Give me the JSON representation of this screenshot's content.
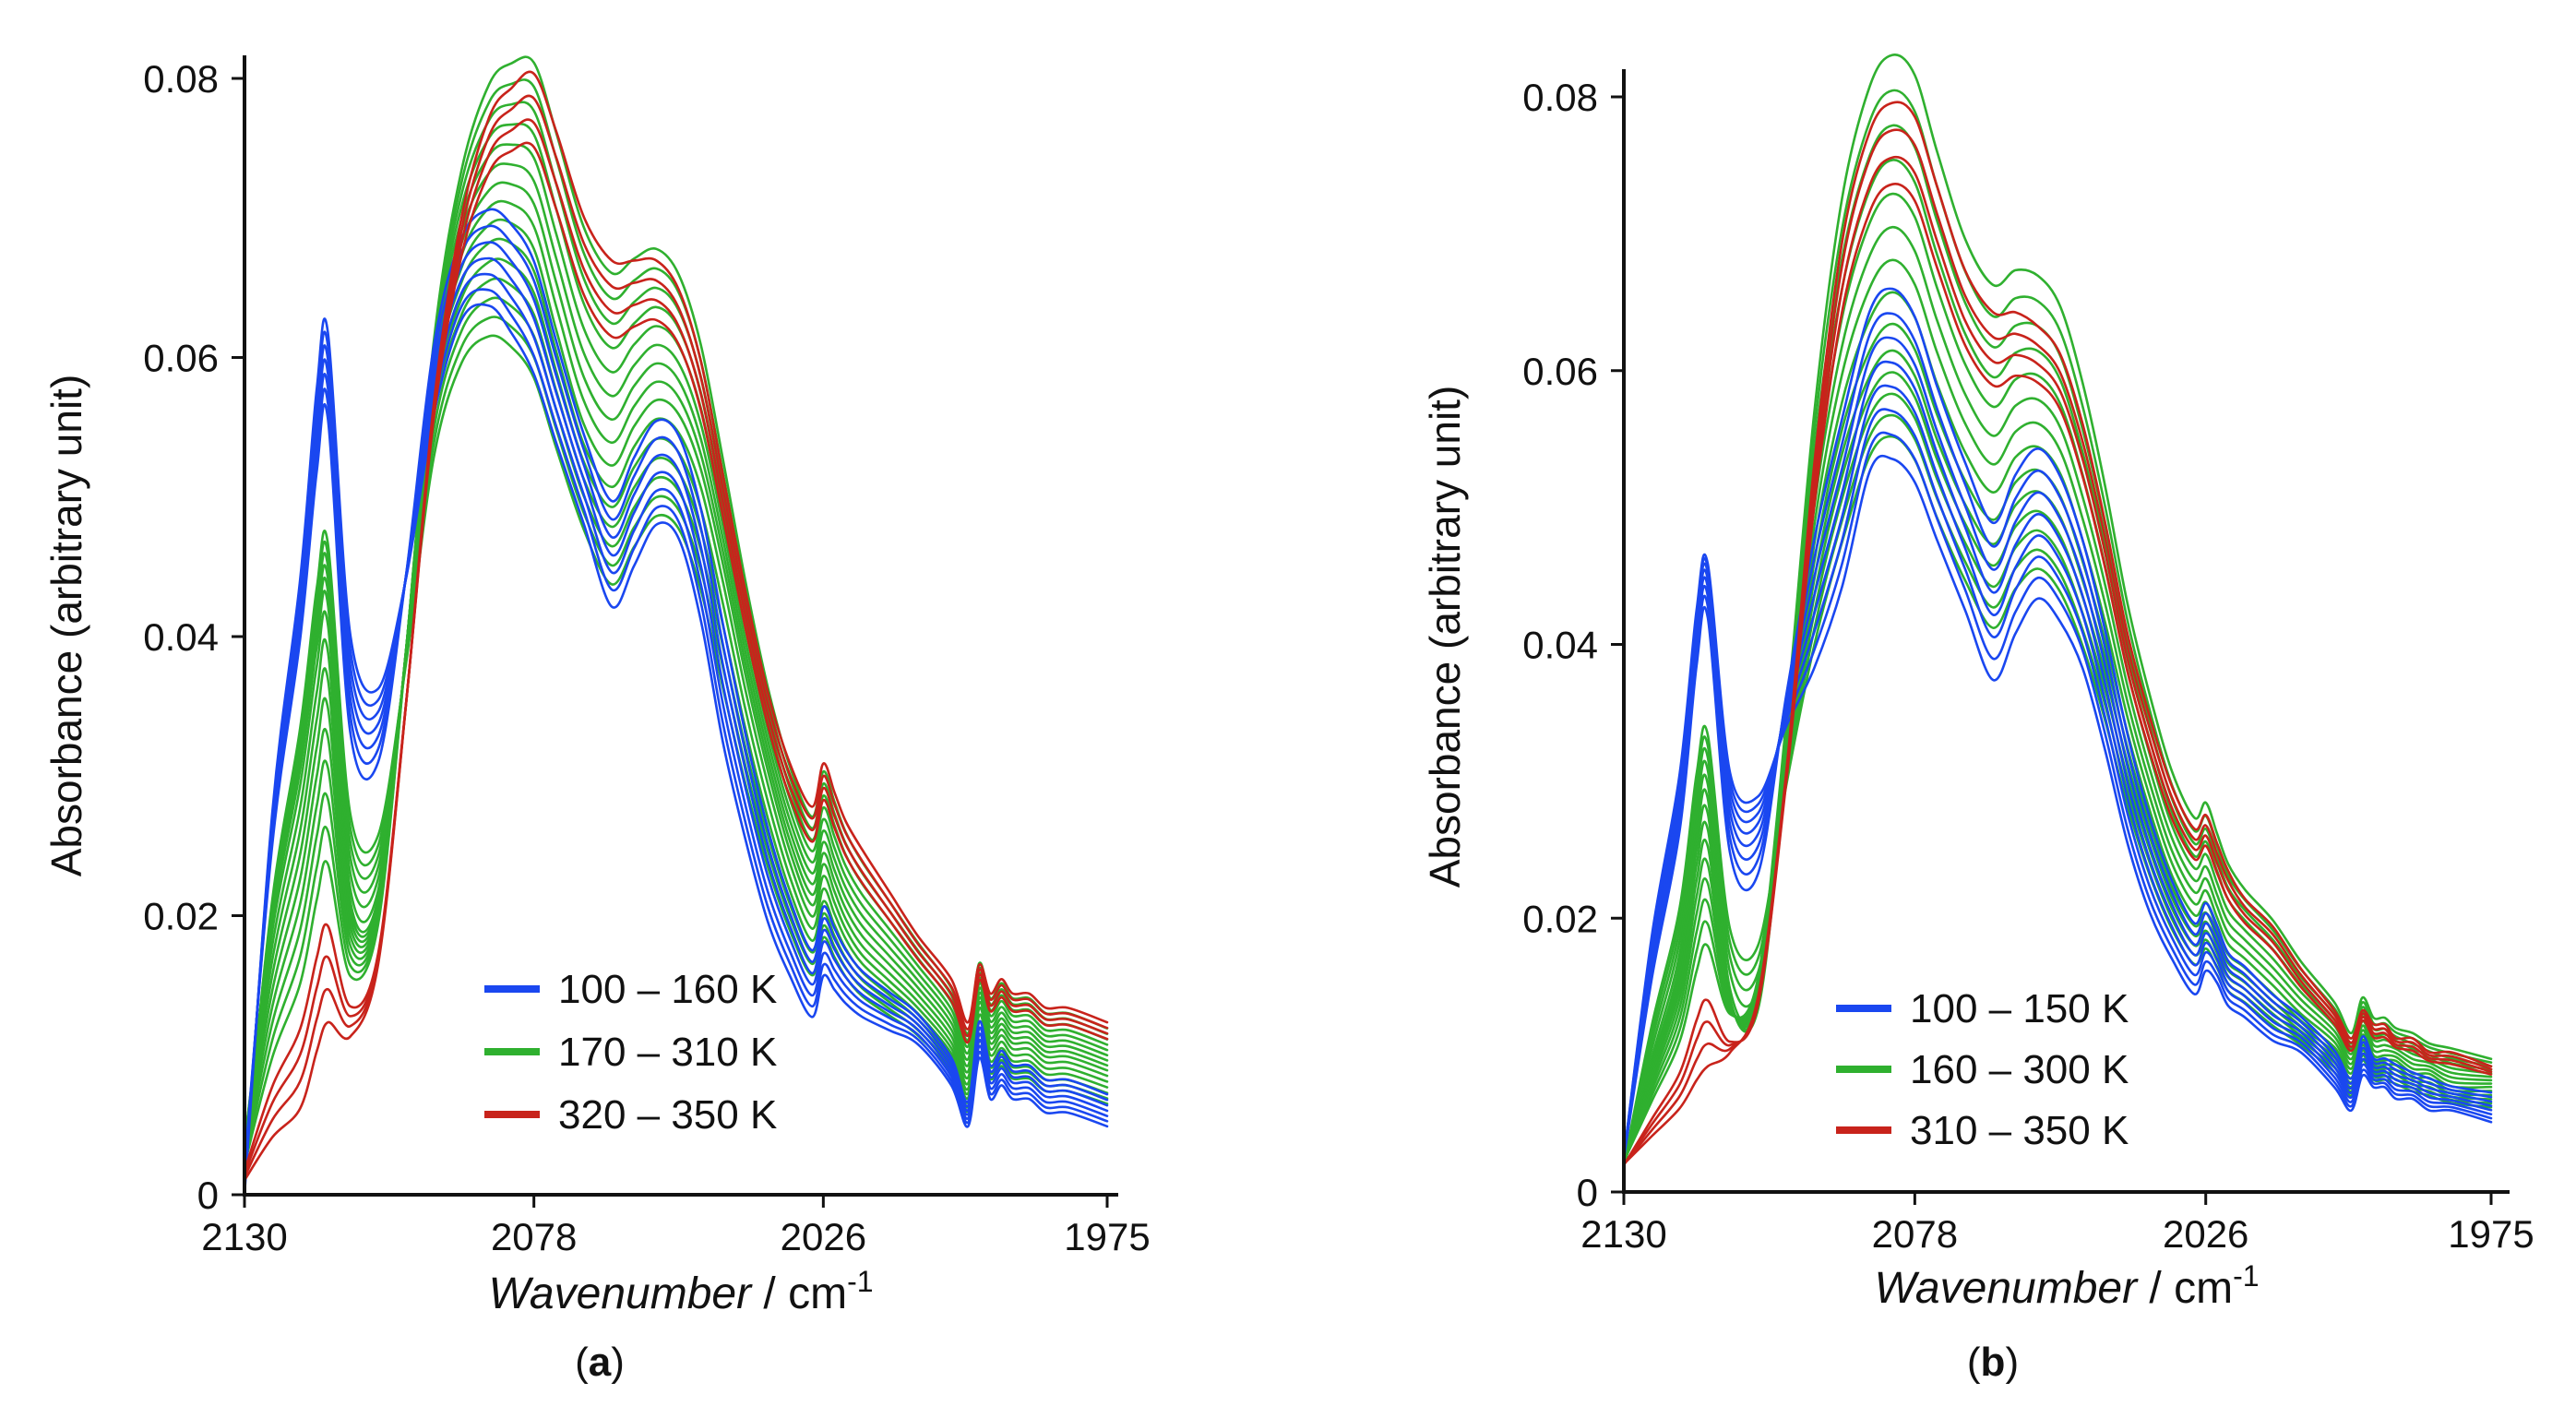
{
  "colors": {
    "blue": "#1a47f0",
    "green": "#2fb02f",
    "red": "#c8231b",
    "axis": "#111111"
  },
  "chart_data": [
    {
      "type": "line",
      "panel_label": "a",
      "xlabel_italic": "Wavenumber",
      "xlabel_unit": " / cm",
      "xlabel_sup": "-1",
      "ylabel": "Absorbance (arbitrary unit)",
      "xlim": [
        2130,
        1975
      ],
      "ylim": [
        0,
        0.08
      ],
      "x_ticks": [
        "2130",
        "2078",
        "2026",
        "1975"
      ],
      "y_ticks": [
        "0",
        "0.02",
        "0.04",
        "0.06",
        "0.08"
      ],
      "legend": [
        {
          "label": "100 – 160 K",
          "color": "blue"
        },
        {
          "label": "170 – 310 K",
          "color": "green"
        },
        {
          "label": "320 – 350 K",
          "color": "red"
        }
      ],
      "groups": [
        {
          "color": "blue",
          "count": 7
        },
        {
          "color": "green",
          "count": 15
        },
        {
          "color": "red",
          "count": 4
        }
      ],
      "x": [
        2130,
        2125,
        2120,
        2117,
        2115,
        2111,
        2106,
        2101,
        2096,
        2091,
        2086,
        2082,
        2078,
        2074,
        2069,
        2064,
        2060,
        2056,
        2052,
        2048,
        2044,
        2040,
        2036,
        2032,
        2028,
        2026,
        2024,
        2022,
        2019,
        2014,
        2009,
        2003,
        2000,
        1998,
        1996,
        1994,
        1992,
        1989,
        1986,
        1982,
        1975
      ],
      "profiles": {
        "cold": [
          0.0,
          0.028,
          0.045,
          0.059,
          0.063,
          0.041,
          0.037,
          0.045,
          0.057,
          0.064,
          0.065,
          0.063,
          0.06,
          0.055,
          0.049,
          0.043,
          0.046,
          0.049,
          0.048,
          0.042,
          0.033,
          0.026,
          0.02,
          0.016,
          0.013,
          0.016,
          0.015,
          0.014,
          0.013,
          0.012,
          0.011,
          0.008,
          0.005,
          0.01,
          0.007,
          0.008,
          0.007,
          0.007,
          0.006,
          0.006,
          0.005
        ],
        "mid": [
          0.004,
          0.02,
          0.031,
          0.04,
          0.043,
          0.022,
          0.022,
          0.04,
          0.06,
          0.068,
          0.071,
          0.071,
          0.069,
          0.063,
          0.056,
          0.053,
          0.056,
          0.058,
          0.057,
          0.053,
          0.046,
          0.038,
          0.031,
          0.025,
          0.021,
          0.024,
          0.022,
          0.02,
          0.018,
          0.016,
          0.014,
          0.011,
          0.008,
          0.014,
          0.011,
          0.012,
          0.011,
          0.011,
          0.01,
          0.01,
          0.009
        ],
        "hot": [
          0.001,
          0.004,
          0.006,
          0.01,
          0.012,
          0.011,
          0.016,
          0.034,
          0.055,
          0.068,
          0.075,
          0.077,
          0.078,
          0.074,
          0.068,
          0.065,
          0.065,
          0.065,
          0.063,
          0.058,
          0.05,
          0.042,
          0.035,
          0.03,
          0.027,
          0.03,
          0.028,
          0.026,
          0.024,
          0.021,
          0.018,
          0.015,
          0.012,
          0.016,
          0.014,
          0.015,
          0.014,
          0.014,
          0.013,
          0.013,
          0.012
        ]
      },
      "amp_range": {
        "blue": [
          0.98,
          1.04
        ],
        "green": [
          0.9,
          1.08
        ],
        "red": [
          0.99,
          1.03
        ]
      }
    },
    {
      "type": "line",
      "panel_label": "b",
      "xlabel_italic": "Wavenumber",
      "xlabel_unit": " / cm",
      "xlabel_sup": "-1",
      "ylabel": "Absorbance (arbitrary unit)",
      "xlim": [
        2130,
        1975
      ],
      "ylim": [
        0,
        0.08
      ],
      "x_ticks": [
        "2130",
        "2078",
        "2026",
        "1975"
      ],
      "y_ticks": [
        "0",
        "0.02",
        "0.04",
        "0.06",
        "0.08"
      ],
      "legend": [
        {
          "label": "100 – 150 K",
          "color": "blue"
        },
        {
          "label": "160 – 300 K",
          "color": "green"
        },
        {
          "label": "310 – 350 K",
          "color": "red"
        }
      ],
      "groups": [
        {
          "color": "blue",
          "count": 8
        },
        {
          "color": "green",
          "count": 14
        },
        {
          "color": "red",
          "count": 4
        }
      ],
      "x": [
        2130,
        2125,
        2120,
        2117,
        2115,
        2111,
        2106,
        2101,
        2096,
        2091,
        2086,
        2082,
        2078,
        2074,
        2069,
        2064,
        2060,
        2056,
        2052,
        2048,
        2044,
        2040,
        2036,
        2032,
        2028,
        2026,
        2024,
        2022,
        2019,
        2014,
        2009,
        2003,
        2000,
        1998,
        1996,
        1994,
        1992,
        1989,
        1986,
        1982,
        1975
      ],
      "profiles": {
        "cold": [
          0.003,
          0.022,
          0.036,
          0.05,
          0.054,
          0.036,
          0.034,
          0.04,
          0.045,
          0.052,
          0.062,
          0.063,
          0.061,
          0.056,
          0.05,
          0.044,
          0.048,
          0.051,
          0.049,
          0.045,
          0.038,
          0.03,
          0.024,
          0.02,
          0.017,
          0.019,
          0.018,
          0.016,
          0.015,
          0.013,
          0.012,
          0.009,
          0.007,
          0.01,
          0.009,
          0.009,
          0.008,
          0.008,
          0.007,
          0.007,
          0.006
        ],
        "mid": [
          0.002,
          0.01,
          0.018,
          0.028,
          0.031,
          0.015,
          0.014,
          0.032,
          0.048,
          0.058,
          0.064,
          0.066,
          0.064,
          0.059,
          0.054,
          0.051,
          0.054,
          0.055,
          0.053,
          0.048,
          0.042,
          0.035,
          0.029,
          0.024,
          0.021,
          0.022,
          0.02,
          0.018,
          0.017,
          0.015,
          0.013,
          0.011,
          0.009,
          0.012,
          0.01,
          0.01,
          0.01,
          0.009,
          0.009,
          0.008,
          0.008
        ],
        "hot": [
          0.002,
          0.004,
          0.006,
          0.008,
          0.009,
          0.01,
          0.014,
          0.03,
          0.052,
          0.068,
          0.076,
          0.078,
          0.077,
          0.072,
          0.066,
          0.063,
          0.063,
          0.062,
          0.06,
          0.055,
          0.048,
          0.04,
          0.034,
          0.029,
          0.026,
          0.027,
          0.025,
          0.023,
          0.021,
          0.019,
          0.016,
          0.013,
          0.011,
          0.013,
          0.012,
          0.012,
          0.011,
          0.011,
          0.01,
          0.01,
          0.009
        ]
      },
      "amp_range": {
        "blue": [
          0.85,
          1.02
        ],
        "green": [
          0.85,
          1.12
        ],
        "red": [
          0.98,
          1.02
        ]
      }
    }
  ]
}
